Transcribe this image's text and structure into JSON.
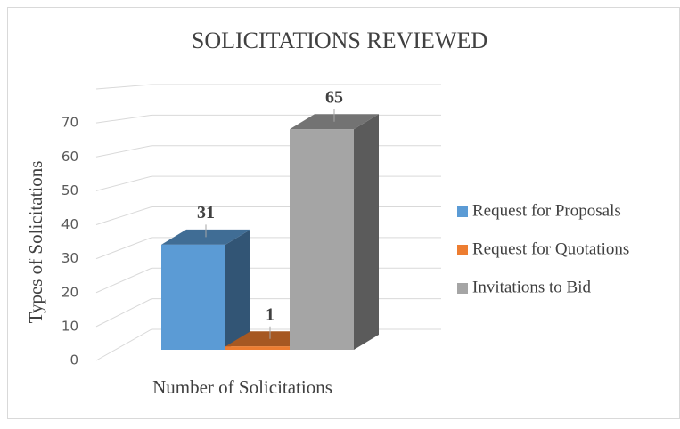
{
  "chart_data": {
    "type": "bar3d",
    "title": "SOLICITATIONS REVIEWED",
    "y_label": "Types of Solicitations",
    "categories": [
      "Number of Solicitations"
    ],
    "series": [
      {
        "name": "Request for Proposals",
        "color": "#5b9bd5",
        "values": [
          31
        ]
      },
      {
        "name": "Request for Quotations",
        "color": "#ed7d31",
        "values": [
          1
        ]
      },
      {
        "name": "Invitations to Bid",
        "color": "#a5a5a5",
        "values": [
          65
        ]
      }
    ],
    "ylim": [
      0,
      80
    ],
    "yticks": [
      0,
      10,
      20,
      30,
      40,
      50,
      60,
      70
    ],
    "grid": true,
    "legend": "right"
  }
}
